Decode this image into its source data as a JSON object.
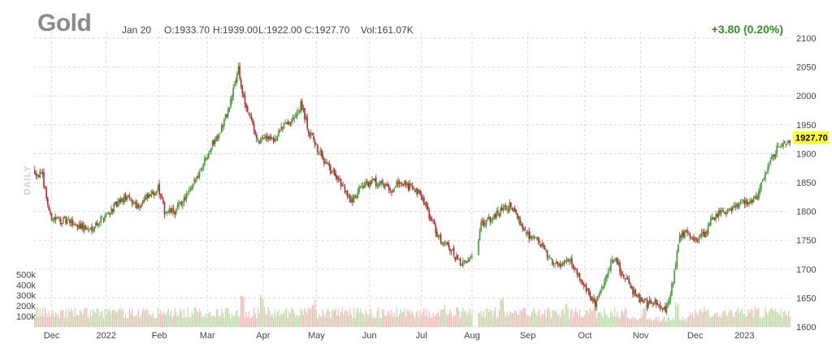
{
  "header": {
    "symbol": "Gold",
    "date": "Jan 20",
    "open": "O:1933.70",
    "high": "H:1939.00",
    "low": "L:1922.00",
    "close": "C:1927.70",
    "volume": "Vol:161.07K",
    "change": "+3.80 (0.20%)"
  },
  "colors": {
    "up": "#3e9b2e",
    "down": "#b8272c",
    "vol_up": "#b7dfa6",
    "vol_down": "#f3b7b9",
    "price_tag": "#ffff33",
    "change": "#2f8f1f"
  },
  "chart_data": {
    "type": "candlestick",
    "period_label": "DAILY",
    "y_ticks": [
      1600,
      1650,
      1700,
      1750,
      1800,
      1850,
      1900,
      1950,
      2000,
      2050,
      2100
    ],
    "ylim": [
      1600,
      2100
    ],
    "vol_ticks": [
      "100k",
      "200k",
      "300k",
      "400k",
      "500k"
    ],
    "vol_tick_values": [
      100,
      200,
      300,
      400,
      500
    ],
    "vol_max": 580,
    "last_price": "1927.70",
    "last_price_value": 1927.7,
    "x_labels": [
      "Dec",
      "2022",
      "Feb",
      "Mar",
      "Apr",
      "May",
      "Jun",
      "Jul",
      "Aug",
      "Sep",
      "Oct",
      "Nov",
      "Dec",
      "2023"
    ],
    "x_label_index": [
      13,
      55,
      96,
      133,
      176,
      217,
      258,
      298,
      337,
      380,
      424,
      467,
      509,
      547
    ],
    "n_bars": 583,
    "close_path": [
      [
        0,
        1870
      ],
      [
        6,
        1860
      ],
      [
        12,
        1790
      ],
      [
        20,
        1785
      ],
      [
        35,
        1775
      ],
      [
        42,
        1768
      ],
      [
        55,
        1795
      ],
      [
        70,
        1825
      ],
      [
        80,
        1810
      ],
      [
        95,
        1840
      ],
      [
        100,
        1800
      ],
      [
        108,
        1800
      ],
      [
        120,
        1835
      ],
      [
        128,
        1875
      ],
      [
        135,
        1910
      ],
      [
        143,
        1940
      ],
      [
        150,
        1980
      ],
      [
        157,
        2050
      ],
      [
        160,
        2000
      ],
      [
        167,
        1960
      ],
      [
        172,
        1920
      ],
      [
        178,
        1935
      ],
      [
        185,
        1920
      ],
      [
        192,
        1955
      ],
      [
        200,
        1960
      ],
      [
        205,
        1985
      ],
      [
        212,
        1935
      ],
      [
        220,
        1900
      ],
      [
        228,
        1870
      ],
      [
        236,
        1850
      ],
      [
        243,
        1815
      ],
      [
        250,
        1840
      ],
      [
        258,
        1850
      ],
      [
        266,
        1850
      ],
      [
        274,
        1835
      ],
      [
        282,
        1855
      ],
      [
        290,
        1840
      ],
      [
        298,
        1825
      ],
      [
        305,
        1790
      ],
      [
        311,
        1755
      ],
      [
        320,
        1735
      ],
      [
        328,
        1710
      ],
      [
        334,
        1715
      ],
      [
        341,
        1735
      ],
      [
        344,
        1775
      ],
      [
        352,
        1790
      ],
      [
        360,
        1800
      ],
      [
        366,
        1810
      ],
      [
        372,
        1790
      ],
      [
        380,
        1760
      ],
      [
        388,
        1750
      ],
      [
        396,
        1720
      ],
      [
        403,
        1705
      ],
      [
        410,
        1720
      ],
      [
        418,
        1695
      ],
      [
        426,
        1660
      ],
      [
        432,
        1640
      ],
      [
        437,
        1665
      ],
      [
        442,
        1700
      ],
      [
        447,
        1720
      ],
      [
        452,
        1695
      ],
      [
        458,
        1672
      ],
      [
        465,
        1650
      ],
      [
        472,
        1640
      ],
      [
        479,
        1645
      ],
      [
        486,
        1625
      ],
      [
        492,
        1680
      ],
      [
        497,
        1760
      ],
      [
        503,
        1760
      ],
      [
        510,
        1750
      ],
      [
        516,
        1760
      ],
      [
        522,
        1785
      ],
      [
        530,
        1800
      ],
      [
        538,
        1805
      ],
      [
        545,
        1815
      ],
      [
        552,
        1818
      ],
      [
        558,
        1830
      ],
      [
        564,
        1868
      ],
      [
        570,
        1900
      ],
      [
        575,
        1918
      ],
      [
        582,
        1925
      ]
    ],
    "gaps": [
      [
        338,
        341
      ]
    ],
    "volume_low_index": 458,
    "volume_high_index": 502,
    "volume_low_level": 75,
    "volume_base_level": 135,
    "volume_spikes": [
      [
        160,
        330
      ],
      [
        175,
        290
      ],
      [
        215,
        245
      ],
      [
        315,
        200
      ],
      [
        360,
        260
      ],
      [
        410,
        200
      ],
      [
        470,
        210
      ],
      [
        495,
        220
      ]
    ]
  }
}
